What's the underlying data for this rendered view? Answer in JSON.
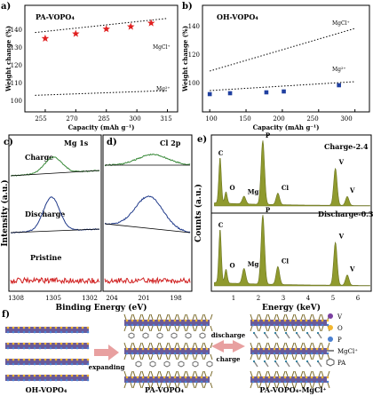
{
  "panel_labels": {
    "a": "a)",
    "b": "b)",
    "c": "c)",
    "d": "d)",
    "e": "e)",
    "f": "f)"
  },
  "panel_a": {
    "title": "PA-VOPO₄",
    "ylabel": "Weight change (%)",
    "xlabel": "Capacity (mAh g⁻¹)",
    "yticks": [
      "100",
      "110",
      "120",
      "130",
      "140"
    ],
    "xticks": [
      "255",
      "270",
      "285",
      "300",
      "315"
    ],
    "line_labels": [
      "MgCl⁺",
      "Mg²⁺"
    ]
  },
  "panel_b": {
    "title": "OH-VOPO₄",
    "ylabel": "Weight change (%)",
    "xlabel": "Capacity (mAh g⁻¹)",
    "yticks": [
      "100",
      "120",
      "140"
    ],
    "xticks": [
      "100",
      "150",
      "200",
      "250",
      "300"
    ],
    "line_labels": [
      "MgCl⁺",
      "Mg²⁺"
    ]
  },
  "panel_c": {
    "title": "Mg 1s",
    "traces": [
      "Charge",
      "Discharge",
      "Pristine"
    ],
    "xticks": [
      "1308",
      "1305",
      "1302"
    ]
  },
  "panel_d": {
    "title": "Cl 2p",
    "xticks": [
      "204",
      "201",
      "198"
    ]
  },
  "xps_common": {
    "ylabel": "Intensity (a.u.)",
    "xlabel": "Binding Energy (eV)"
  },
  "panel_e": {
    "ylabel": "Counts (a.u.)",
    "xlabel": "Energy (keV)",
    "xticks": [
      "1",
      "2",
      "3",
      "4",
      "5",
      "6"
    ],
    "spectra": [
      "Charge-2.4",
      "Discharge-0.3"
    ],
    "peaks_top": [
      "C",
      "O",
      "Mg",
      "P",
      "Cl",
      "V",
      "V"
    ],
    "peaks_bottom": [
      "C",
      "O",
      "Mg",
      "P",
      "Cl",
      "V",
      "V"
    ]
  },
  "panel_f": {
    "structures": [
      "OH-VOPO₄",
      "PA-VOPO₄",
      "PA-VOPO₄-MgCl⁺"
    ],
    "arrow1": "expanding",
    "arrow2_top": "discharge",
    "arrow2_bottom": "charge",
    "legend": [
      {
        "label": "V",
        "color": "#7a3fa0"
      },
      {
        "label": "O",
        "color": "#f2b630"
      },
      {
        "label": "P",
        "color": "#4a7fd0"
      },
      {
        "label": "MgCl⁺",
        "color": "#888888"
      },
      {
        "label": "PA",
        "color": "#555555"
      }
    ]
  },
  "chart_data": [
    {
      "type": "scatter",
      "title": "PA-VOPO₄",
      "xlabel": "Capacity (mAh g⁻¹)",
      "ylabel": "Weight change (%)",
      "xlim": [
        245,
        320
      ],
      "ylim": [
        100,
        145
      ],
      "series": [
        {
          "name": "",
          "marker": "star",
          "color": "#e02020",
          "x": [
            255,
            270,
            285,
            297,
            307
          ],
          "y": [
            131,
            133,
            135,
            136,
            137.5
          ]
        }
      ],
      "reference_lines": [
        {
          "name": "MgCl⁺",
          "x": [
            250,
            315
          ],
          "y": [
            133.5,
            139.5
          ]
        },
        {
          "name": "Mg²⁺",
          "x": [
            250,
            315
          ],
          "y": [
            107,
            109
          ]
        }
      ]
    },
    {
      "type": "scatter",
      "title": "OH-VOPO₄",
      "xlabel": "Capacity (mAh g⁻¹)",
      "ylabel": "Weight change (%)",
      "xlim": [
        90,
        320
      ],
      "ylim": [
        90,
        150
      ],
      "series": [
        {
          "name": "",
          "marker": "square",
          "color": "#2040a0",
          "x": [
            100,
            128,
            178,
            202,
            278
          ],
          "y": [
            100,
            100.5,
            101,
            101.5,
            105
          ]
        }
      ],
      "reference_lines": [
        {
          "name": "MgCl⁺",
          "x": [
            100,
            300
          ],
          "y": [
            113,
            137
          ]
        },
        {
          "name": "Mg²⁺",
          "x": [
            100,
            300
          ],
          "y": [
            102,
            107
          ]
        }
      ]
    },
    {
      "type": "line",
      "title": "Mg 1s",
      "xlabel": "Binding Energy (eV)",
      "ylabel": "Intensity (a.u.)",
      "series": [
        {
          "name": "Charge",
          "peak_center": 1305,
          "color": "#3a8a3a"
        },
        {
          "name": "Discharge",
          "peak_center": 1305,
          "color": "#203a8a"
        },
        {
          "name": "Pristine",
          "peak_center": null,
          "color": "#d02020"
        }
      ]
    },
    {
      "type": "line",
      "title": "Cl 2p",
      "xlabel": "Binding Energy (eV)",
      "ylabel": "Intensity (a.u.)",
      "series": [
        {
          "name": "Charge",
          "peak_center": 200,
          "color": "#3a8a3a"
        },
        {
          "name": "Discharge",
          "peak_center": 200,
          "color": "#203a8a"
        },
        {
          "name": "Pristine",
          "peak_center": null,
          "color": "#d02020"
        }
      ]
    },
    {
      "type": "bar",
      "title": "",
      "xlabel": "Energy (keV)",
      "ylabel": "Counts (a.u.)",
      "series": [
        {
          "name": "Charge-2.4",
          "x": [
            0.28,
            0.52,
            1.25,
            2.01,
            2.62,
            4.95,
            5.43
          ],
          "y": [
            0.72,
            0.18,
            0.12,
            1.0,
            0.18,
            0.58,
            0.14
          ],
          "labels": [
            "C",
            "O",
            "Mg",
            "P",
            "Cl",
            "V",
            "V"
          ]
        },
        {
          "name": "Discharge-0.3",
          "x": [
            0.28,
            0.52,
            1.25,
            2.01,
            2.62,
            4.95,
            5.43
          ],
          "y": [
            0.78,
            0.2,
            0.22,
            1.0,
            0.26,
            0.62,
            0.15
          ],
          "labels": [
            "C",
            "O",
            "Mg",
            "P",
            "Cl",
            "V",
            "V"
          ]
        }
      ]
    }
  ]
}
